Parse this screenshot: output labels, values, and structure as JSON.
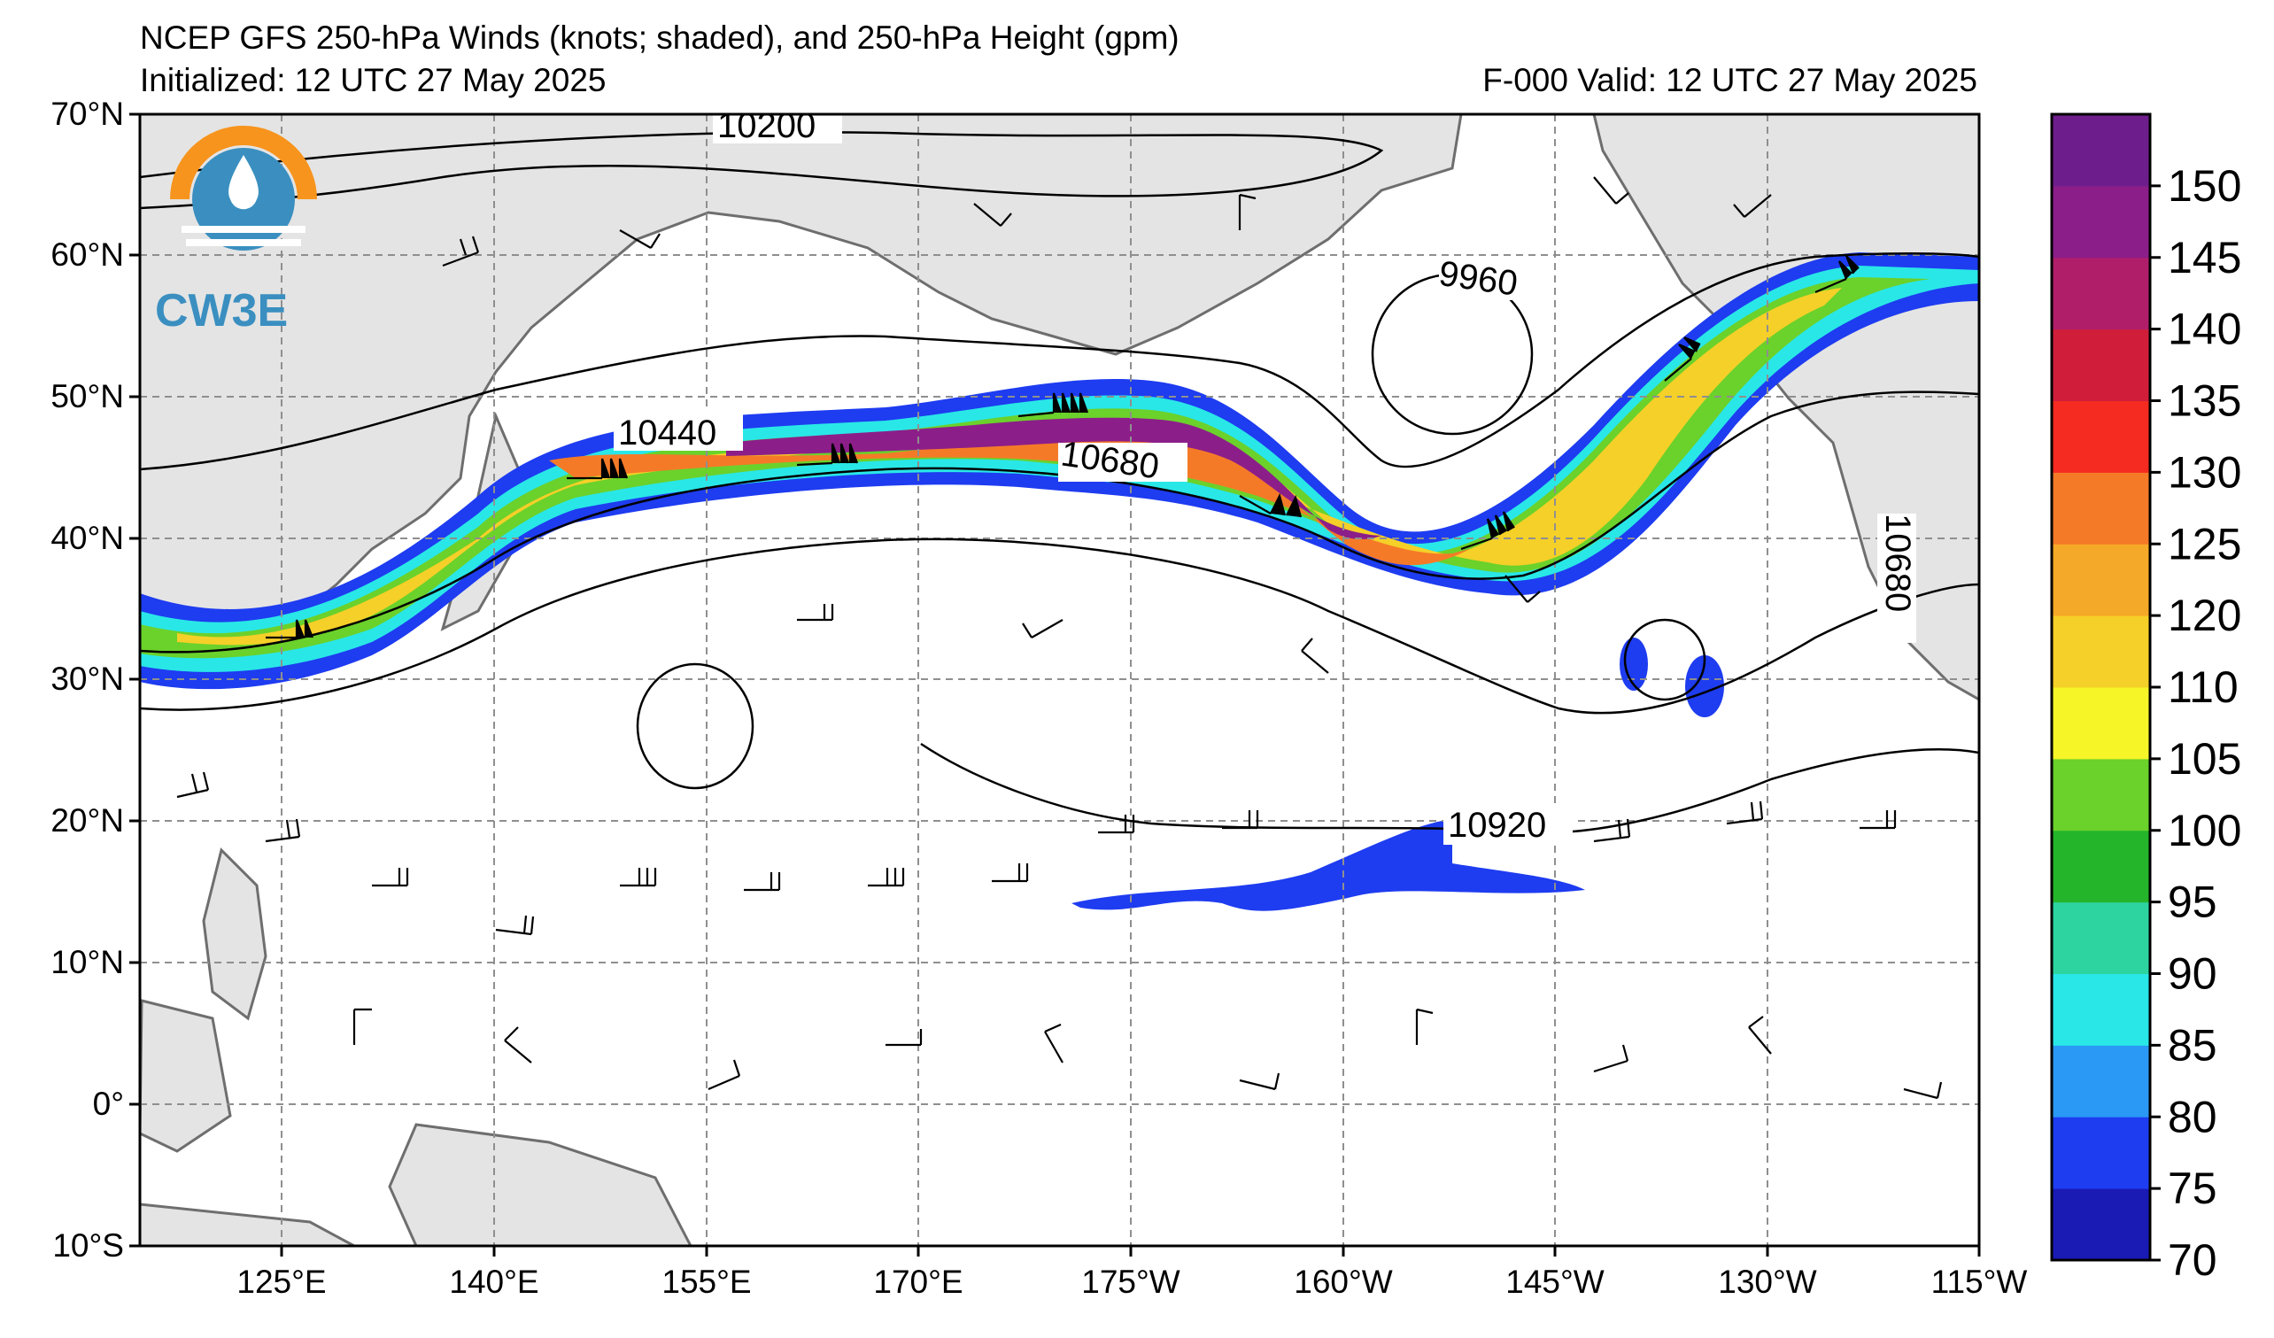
{
  "title": {
    "line1": "NCEP GFS 250-hPa Winds (knots; shaded), and 250-hPa Height (gpm)",
    "initialized": "Initialized: 12 UTC 27 May 2025",
    "valid": "F-000  Valid: 12 UTC 27 May 2025"
  },
  "logo": {
    "text": "CW3E"
  },
  "axes": {
    "lat_labels": [
      "70°N",
      "60°N",
      "50°N",
      "40°N",
      "30°N",
      "20°N",
      "10°N",
      "0°",
      "10°S"
    ],
    "lon_labels": [
      "125°E",
      "140°E",
      "155°E",
      "170°E",
      "175°W",
      "160°W",
      "145°W",
      "130°W",
      "115°W"
    ]
  },
  "contour_labels": [
    "10200",
    "10440",
    "10680",
    "9960",
    "10920",
    "10680"
  ],
  "colorbar": {
    "ticks": [
      "150",
      "145",
      "140",
      "135",
      "130",
      "125",
      "120",
      "110",
      "105",
      "100",
      "95",
      "90",
      "85",
      "80",
      "75",
      "70"
    ],
    "colors": [
      "#1a1ab5",
      "#1e3cf0",
      "#2a98f5",
      "#29e7e7",
      "#2dd4a0",
      "#25b52a",
      "#6bd12b",
      "#f5f528",
      "#f5d028",
      "#f5a928",
      "#f57a28",
      "#f52a20",
      "#d01e3a",
      "#b01e6a",
      "#8c1e8a",
      "#6e1e8c"
    ]
  }
}
